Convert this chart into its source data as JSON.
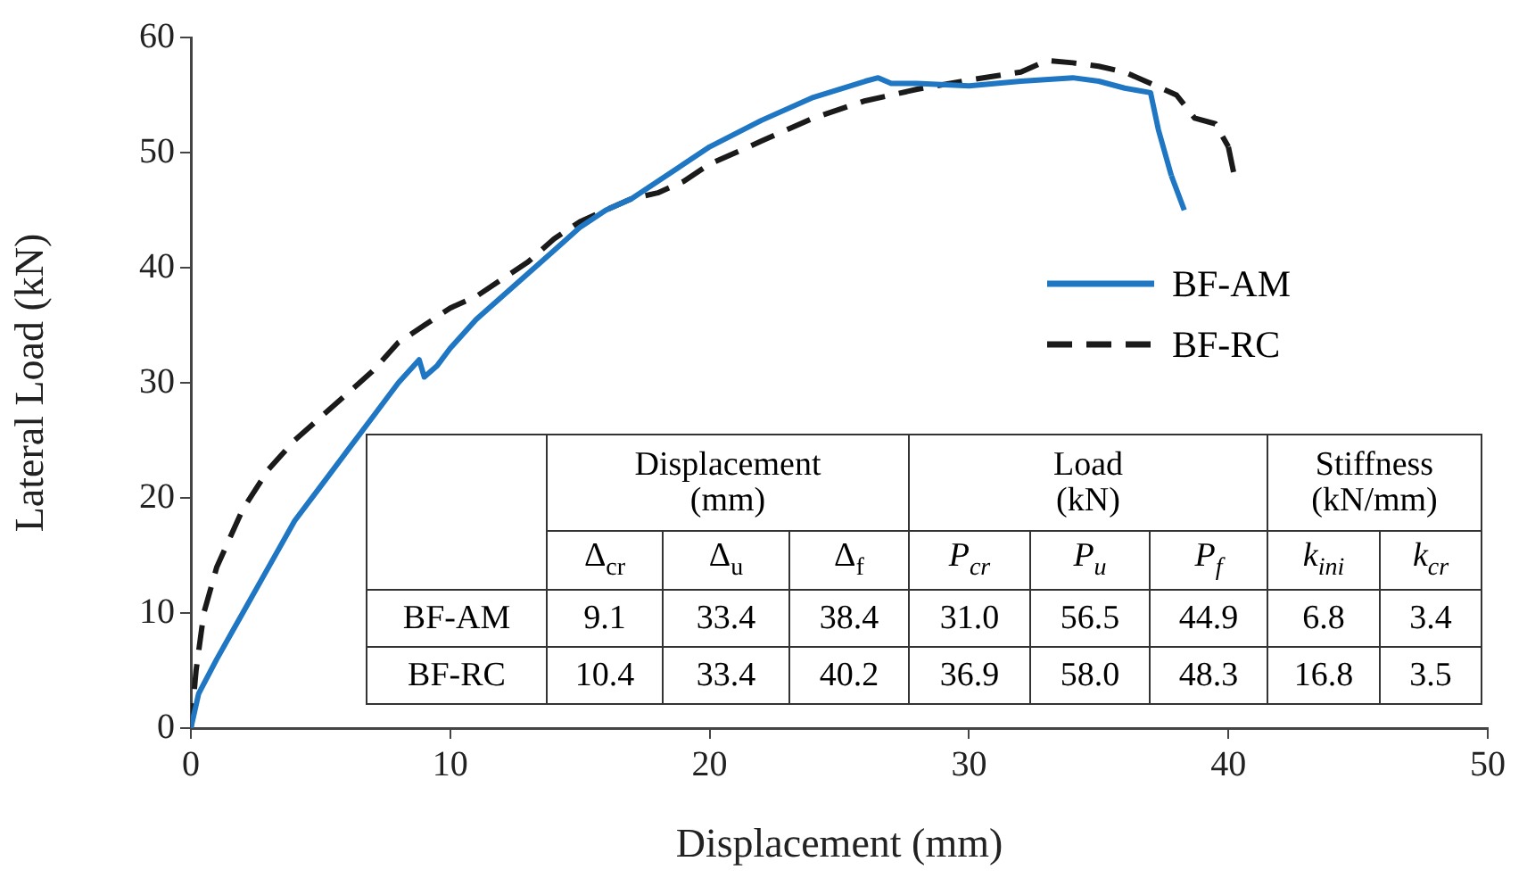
{
  "chart_data": {
    "type": "line",
    "xlabel": "Displacement (mm)",
    "ylabel": "Lateral Load (kN)",
    "xlim": [
      0,
      50
    ],
    "xticks": [
      0,
      10,
      20,
      30,
      40,
      50
    ],
    "ylim": [
      0,
      60
    ],
    "yticks": [
      0,
      10,
      20,
      30,
      40,
      50,
      60
    ],
    "grid": false,
    "legend": "right",
    "marker": "none",
    "series": [
      {
        "name": "BF-AM",
        "color": "#1f77c4",
        "line_style": "solid",
        "x": [
          0,
          0.3,
          1,
          2,
          3,
          4,
          5,
          6,
          7,
          8,
          8.8,
          9,
          9.5,
          10,
          11,
          12,
          13,
          14,
          15,
          16,
          17,
          18,
          20,
          22,
          24,
          26,
          26.5,
          27,
          28,
          30,
          32,
          34,
          35,
          36,
          37,
          37.3,
          37.8,
          38.3
        ],
        "values": [
          0,
          3,
          6,
          10,
          14,
          18,
          21,
          24,
          27,
          30,
          32,
          30.5,
          31.5,
          33,
          35.5,
          37.5,
          39.5,
          41.5,
          43.5,
          45,
          46,
          47.5,
          50.5,
          52.8,
          54.8,
          56.2,
          56.5,
          56,
          56,
          55.8,
          56.2,
          56.5,
          56.2,
          55.6,
          55.2,
          52,
          48,
          45
        ]
      },
      {
        "name": "BF-RC",
        "color": "#1a1a1a",
        "line_style": "dashed",
        "x": [
          0,
          0.2,
          0.5,
          1,
          2,
          3,
          4,
          5,
          6,
          7,
          8,
          9,
          10,
          11,
          12,
          13,
          14,
          15,
          16,
          17,
          18,
          19,
          20,
          22,
          24,
          26,
          28,
          30,
          32,
          33,
          34,
          35,
          36,
          37,
          38,
          38.7,
          39.5,
          40,
          40.2
        ],
        "values": [
          0,
          5,
          10,
          14,
          19,
          22.5,
          25,
          27,
          29,
          31,
          33.5,
          35,
          36.5,
          37.5,
          39,
          40.5,
          42.5,
          44,
          45,
          46,
          46.5,
          47.5,
          49,
          51,
          53,
          54.5,
          55.5,
          56.3,
          57,
          58,
          57.8,
          57.5,
          57,
          56,
          55,
          53,
          52.5,
          50.5,
          48.3
        ]
      }
    ],
    "annotations": [
      "Displacement\n(mm)",
      "Load\n(kN)",
      "Stiffness\n(kN/mm)",
      "Δ$_{cr}$",
      "Δ$_{u}$",
      "Δ$_{f}$",
      "P$_{cr}$",
      "P$_{u}$",
      "P$_{f}$",
      "k$_{ini}$",
      "k$_{cr}$",
      "BF-AM",
      "9.1",
      "33.4",
      "38.4",
      "31.0",
      "56.5",
      "44.9",
      "6.8",
      "3.4",
      "BF-RC",
      "10.4",
      "33.4",
      "40.2",
      "36.9",
      "58.0",
      "48.3",
      "16.8",
      "3.5"
    ]
  }
}
